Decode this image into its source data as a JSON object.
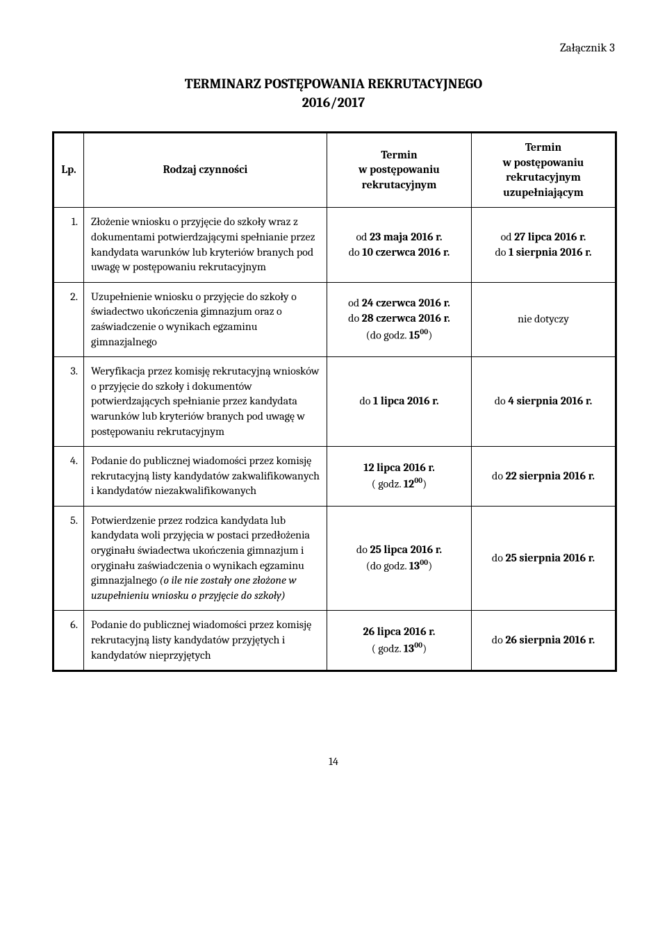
{
  "attachment_label": "Załącznik 3",
  "title_line1": "TERMINARZ POSTĘPOWANIA REKRUTACYJNEGO",
  "title_line2": "2016/2017",
  "page_number": "14",
  "table": {
    "headers": {
      "lp": "Lp.",
      "desc": "Rodzaj czynności",
      "term1_l1": "Termin",
      "term1_l2": "w postępowaniu",
      "term1_l3": "rekrutacyjnym",
      "term2_l1": "Termin",
      "term2_l2": "w postępowaniu",
      "term2_l3": "rekrutacyjnym",
      "term2_l4": "uzupełniającym"
    },
    "rows": [
      {
        "lp": "1.",
        "desc_parts": [
          {
            "t": "Złożenie wniosku o przyjęcie do szkoły wraz z dokumentami potwierdzającymi spełnianie przez kandydata warunków lub kryteriów branych pod uwagę w postępowaniu rekrutacyjnym"
          }
        ],
        "term1_parts": [
          {
            "t": "od "
          },
          {
            "t": "23 maja 2016 r.",
            "b": true
          },
          {
            "br": true
          },
          {
            "t": "do "
          },
          {
            "t": "10 czerwca 2016 r.",
            "b": true
          }
        ],
        "term2_parts": [
          {
            "t": "od "
          },
          {
            "t": "27 lipca 2016 r.",
            "b": true
          },
          {
            "br": true
          },
          {
            "t": "do "
          },
          {
            "t": "1 sierpnia 2016 r.",
            "b": true
          }
        ]
      },
      {
        "lp": "2.",
        "desc_parts": [
          {
            "t": "Uzupełnienie wniosku o przyjęcie do szkoły o świadectwo ukończenia gimnazjum oraz o zaświadczenie o wynikach egzaminu gimnazjalnego"
          }
        ],
        "term1_parts": [
          {
            "t": "od "
          },
          {
            "t": "24 czerwca 2016 r.",
            "b": true
          },
          {
            "br": true
          },
          {
            "t": "do "
          },
          {
            "t": "28 czerwca 2016 r.",
            "b": true
          },
          {
            "br": true
          },
          {
            "t": "(do godz. "
          },
          {
            "t": "15",
            "b": true
          },
          {
            "t": "00",
            "b": true,
            "sup": true
          },
          {
            "t": ")"
          }
        ],
        "term2_parts": [
          {
            "t": "nie dotyczy"
          }
        ]
      },
      {
        "lp": "3.",
        "desc_parts": [
          {
            "t": "Weryfikacja przez komisję rekrutacyjną wniosków o przyjęcie do szkoły i dokumentów potwierdzających spełnianie przez kandydata warunków lub kryteriów branych pod uwagę w postępowaniu rekrutacyjnym"
          }
        ],
        "term1_parts": [
          {
            "t": "do "
          },
          {
            "t": "1 lipca 2016 r.",
            "b": true
          }
        ],
        "term2_parts": [
          {
            "t": "do "
          },
          {
            "t": "4 sierpnia 2016 r.",
            "b": true
          }
        ]
      },
      {
        "lp": "4.",
        "desc_parts": [
          {
            "t": "Podanie do publicznej wiadomości przez komisję rekrutacyjną listy kandydatów zakwalifikowanych i kandydatów niezakwalifikowanych"
          }
        ],
        "term1_parts": [
          {
            "t": "12 lipca 2016 r.",
            "b": true
          },
          {
            "br": true
          },
          {
            "t": "( godz. "
          },
          {
            "t": "12",
            "b": true
          },
          {
            "t": "00",
            "b": true,
            "sup": true
          },
          {
            "t": ")"
          }
        ],
        "term2_parts": [
          {
            "t": "do "
          },
          {
            "t": "22 sierpnia 2016 r.",
            "b": true
          }
        ]
      },
      {
        "lp": "5.",
        "desc_parts": [
          {
            "t": "Potwierdzenie przez rodzica kandydata lub kandydata woli przyjęcia w postaci przedłożenia oryginału świadectwa ukończenia gimnazjum i oryginału zaświadczenia o wynikach egzaminu gimnazjalnego "
          },
          {
            "t": "(o ile nie zostały one złożone w uzupełnieniu wniosku o przyjęcie do szkoły)",
            "i": true
          }
        ],
        "term1_parts": [
          {
            "t": "do "
          },
          {
            "t": "25 lipca 2016 r.",
            "b": true
          },
          {
            "br": true
          },
          {
            "t": "(do godz. "
          },
          {
            "t": "13",
            "b": true
          },
          {
            "t": "00",
            "b": true,
            "sup": true
          },
          {
            "t": ")"
          }
        ],
        "term2_parts": [
          {
            "t": "do "
          },
          {
            "t": "25 sierpnia 2016 r.",
            "b": true
          }
        ]
      },
      {
        "lp": "6.",
        "desc_parts": [
          {
            "t": "Podanie do publicznej wiadomości przez komisję rekrutacyjną listy kandydatów przyjętych i kandydatów nieprzyjętych"
          }
        ],
        "term1_parts": [
          {
            "t": "26 lipca 2016 r.",
            "b": true
          },
          {
            "br": true
          },
          {
            "t": "( godz. "
          },
          {
            "t": "13",
            "b": true
          },
          {
            "t": "00",
            "b": true,
            "sup": true
          },
          {
            "t": ")"
          }
        ],
        "term2_parts": [
          {
            "t": "do "
          },
          {
            "t": "26 sierpnia 2016 r.",
            "b": true
          }
        ]
      }
    ]
  }
}
